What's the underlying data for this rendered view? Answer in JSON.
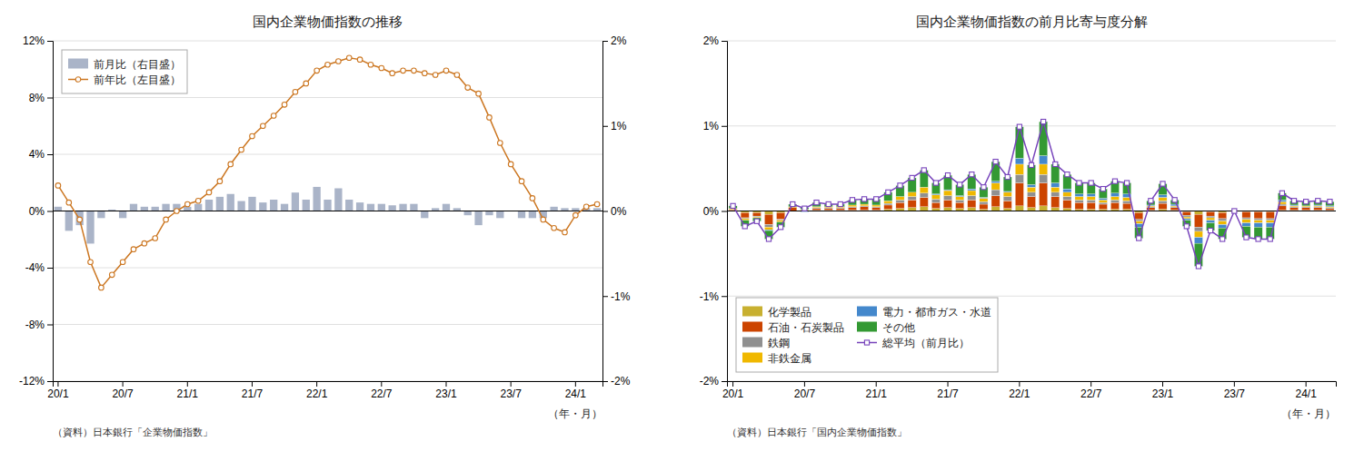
{
  "chart_data": [
    {
      "type": "bar",
      "title": "国内企業物価指数の推移",
      "xlabel": "（年・月）",
      "annotations": [
        "（資料）日本銀行「企業物価指数」"
      ],
      "categories": [
        "20/1",
        null,
        null,
        null,
        null,
        null,
        "20/7",
        null,
        null,
        null,
        null,
        null,
        "21/1",
        null,
        null,
        null,
        null,
        null,
        "21/7",
        null,
        null,
        null,
        null,
        null,
        "22/1",
        null,
        null,
        null,
        null,
        null,
        "22/7",
        null,
        null,
        null,
        null,
        null,
        "23/1",
        null,
        null,
        null,
        null,
        null,
        "23/7",
        null,
        null,
        null,
        null,
        null,
        "24/1",
        null,
        null
      ],
      "series": [
        {
          "name": "前月比（右目盛）",
          "type": "bar",
          "color": "#aab4c8",
          "values": [
            0.3,
            -1.4,
            -1.0,
            -2.3,
            -0.5,
            0.1,
            -0.5,
            0.5,
            0.3,
            0.3,
            0.5,
            0.5,
            0.3,
            0.5,
            0.8,
            1.0,
            1.2,
            0.7,
            1.0,
            0.6,
            0.8,
            0.5,
            1.3,
            0.8,
            1.7,
            0.8,
            1.6,
            0.8,
            0.6,
            0.5,
            0.5,
            0.4,
            0.5,
            0.5,
            -0.5,
            0.2,
            0.5,
            0.2,
            -0.3,
            -1.0,
            -0.3,
            -0.5,
            0.0,
            -0.5,
            -0.5,
            -0.5,
            0.3,
            0.2,
            0.2,
            0.2,
            0.2
          ]
        },
        {
          "name": "前年比（左目盛）",
          "type": "line",
          "axis": "y2",
          "color": "#cc7722",
          "marker": "circle",
          "values": [
            0.3,
            0.1,
            -0.1,
            -0.6,
            -0.9,
            -0.75,
            -0.6,
            -0.45,
            -0.38,
            -0.32,
            -0.1,
            0.0,
            0.08,
            0.12,
            0.22,
            0.35,
            0.55,
            0.72,
            0.88,
            1.0,
            1.12,
            1.25,
            1.4,
            1.5,
            1.65,
            1.72,
            1.76,
            1.8,
            1.78,
            1.72,
            1.68,
            1.62,
            1.65,
            1.65,
            1.62,
            1.6,
            1.65,
            1.6,
            1.45,
            1.38,
            1.1,
            0.8,
            0.55,
            0.35,
            0.15,
            -0.1,
            -0.2,
            -0.25,
            -0.05,
            0.05,
            0.08
          ]
        }
      ],
      "ylim": [
        -12,
        12
      ],
      "yticks": [
        {
          "value": -12,
          "label": "-12%"
        },
        {
          "value": -8,
          "label": "-8%"
        },
        {
          "value": -4,
          "label": "-4%"
        },
        {
          "value": 0,
          "label": "0%"
        },
        {
          "value": 4,
          "label": "4%"
        },
        {
          "value": 8,
          "label": "8%"
        },
        {
          "value": 12,
          "label": "12%"
        }
      ],
      "y2lim": [
        -2,
        2
      ],
      "y2ticks": [
        {
          "value": -2,
          "label": "-2%"
        },
        {
          "value": -1,
          "label": "-1%"
        },
        {
          "value": 0,
          "label": "0%"
        },
        {
          "value": 1,
          "label": "1%"
        },
        {
          "value": 2,
          "label": "2%"
        }
      ],
      "grid": true,
      "legend": "upper left"
    },
    {
      "type": "bar",
      "title": "国内企業物価指数の前月比寄与度分解",
      "xlabel": "（年・月）",
      "annotations": [
        "（資料）日本銀行「国内企業物価指数」"
      ],
      "categories": [
        "20/1",
        null,
        null,
        null,
        null,
        null,
        "20/7",
        null,
        null,
        null,
        null,
        null,
        "21/1",
        null,
        null,
        null,
        null,
        null,
        "21/7",
        null,
        null,
        null,
        null,
        null,
        "22/1",
        null,
        null,
        null,
        null,
        null,
        "22/7",
        null,
        null,
        null,
        null,
        null,
        "23/1",
        null,
        null,
        null,
        null,
        null,
        "23/7",
        null,
        null,
        null,
        null,
        null,
        "24/1",
        null,
        null
      ],
      "stacked": true,
      "series": [
        {
          "name": "化学製品",
          "type": "bar",
          "color": "#c8b030",
          "values": [
            0.01,
            -0.02,
            -0.02,
            -0.04,
            -0.02,
            0.0,
            0.0,
            0.01,
            0.01,
            0.01,
            0.01,
            0.01,
            0.01,
            0.02,
            0.03,
            0.04,
            0.05,
            0.03,
            0.04,
            0.03,
            0.04,
            0.02,
            0.05,
            0.03,
            0.06,
            0.04,
            0.06,
            0.04,
            0.03,
            0.02,
            0.02,
            0.02,
            0.02,
            0.02,
            -0.02,
            0.01,
            0.02,
            0.01,
            -0.01,
            -0.04,
            -0.01,
            -0.02,
            0.0,
            -0.01,
            -0.01,
            -0.01,
            0.01,
            0.01,
            0.01,
            0.01,
            0.01
          ]
        },
        {
          "name": "石油・石炭製品",
          "type": "bar",
          "color": "#cc4400",
          "values": [
            0.01,
            -0.06,
            -0.04,
            -0.12,
            -0.08,
            0.04,
            0.0,
            0.02,
            0.02,
            0.02,
            0.03,
            0.04,
            0.03,
            0.05,
            0.07,
            0.09,
            0.11,
            0.07,
            0.09,
            0.07,
            0.09,
            0.06,
            0.13,
            0.09,
            0.27,
            0.13,
            0.27,
            0.13,
            0.1,
            0.08,
            0.08,
            0.06,
            0.08,
            0.07,
            -0.08,
            0.03,
            0.07,
            0.03,
            -0.04,
            -0.15,
            -0.05,
            -0.07,
            0.0,
            -0.07,
            -0.08,
            -0.08,
            0.05,
            0.03,
            0.03,
            0.03,
            0.02
          ]
        },
        {
          "name": "鉄鋼",
          "type": "bar",
          "color": "#909090",
          "values": [
            0.0,
            -0.01,
            -0.01,
            -0.03,
            -0.01,
            0.0,
            0.01,
            0.01,
            0.01,
            0.01,
            0.01,
            0.01,
            0.01,
            0.02,
            0.03,
            0.04,
            0.05,
            0.04,
            0.05,
            0.03,
            0.05,
            0.03,
            0.07,
            0.05,
            0.1,
            0.05,
            0.1,
            0.05,
            0.04,
            0.03,
            0.03,
            0.02,
            0.03,
            0.03,
            -0.02,
            0.01,
            0.03,
            0.01,
            -0.02,
            -0.05,
            -0.02,
            -0.03,
            0.0,
            -0.02,
            -0.02,
            -0.02,
            0.02,
            0.01,
            0.01,
            0.01,
            0.01
          ]
        },
        {
          "name": "非鉄金属",
          "type": "bar",
          "color": "#f0b800",
          "values": [
            0.01,
            -0.02,
            -0.01,
            -0.03,
            -0.02,
            0.01,
            0.01,
            0.01,
            0.01,
            0.01,
            0.02,
            0.02,
            0.02,
            0.03,
            0.04,
            0.05,
            0.07,
            0.05,
            0.06,
            0.04,
            0.06,
            0.04,
            0.08,
            0.05,
            0.12,
            0.06,
            0.12,
            0.06,
            0.05,
            0.04,
            0.04,
            0.03,
            0.04,
            0.04,
            -0.03,
            0.01,
            0.04,
            0.01,
            -0.02,
            -0.07,
            -0.03,
            -0.04,
            0.0,
            -0.04,
            -0.03,
            -0.03,
            0.03,
            0.01,
            0.01,
            0.01,
            0.01
          ]
        },
        {
          "name": "電力・都市ガス・水道",
          "type": "bar",
          "color": "#4488cc",
          "values": [
            0.0,
            0.0,
            0.0,
            -0.01,
            0.0,
            0.0,
            -0.01,
            0.0,
            0.0,
            0.0,
            0.0,
            0.0,
            0.0,
            0.0,
            0.0,
            0.0,
            0.0,
            0.01,
            0.01,
            0.01,
            0.02,
            0.01,
            0.02,
            0.01,
            0.07,
            0.03,
            0.1,
            0.05,
            0.04,
            0.03,
            0.03,
            0.02,
            0.04,
            0.04,
            -0.04,
            0.01,
            0.03,
            0.02,
            -0.02,
            -0.07,
            -0.03,
            -0.04,
            0.0,
            -0.04,
            -0.05,
            -0.05,
            0.02,
            0.01,
            0.0,
            0.01,
            0.01
          ]
        },
        {
          "name": "その他",
          "type": "bar",
          "color": "#339933",
          "values": [
            0.03,
            -0.07,
            -0.04,
            -0.1,
            -0.06,
            0.03,
            0.02,
            0.05,
            0.03,
            0.03,
            0.06,
            0.06,
            0.07,
            0.1,
            0.13,
            0.17,
            0.2,
            0.13,
            0.17,
            0.13,
            0.17,
            0.12,
            0.23,
            0.17,
            0.37,
            0.23,
            0.4,
            0.22,
            0.17,
            0.13,
            0.13,
            0.11,
            0.14,
            0.13,
            -0.13,
            0.05,
            0.13,
            0.05,
            -0.07,
            -0.27,
            -0.09,
            -0.13,
            0.0,
            -0.13,
            -0.14,
            -0.14,
            0.08,
            0.05,
            0.05,
            0.05,
            0.05
          ]
        },
        {
          "name": "総平均（前月比）",
          "type": "line",
          "color": "#7744bb",
          "marker": "square",
          "values": [
            0.06,
            -0.18,
            -0.12,
            -0.33,
            -0.19,
            0.08,
            0.03,
            0.1,
            0.08,
            0.08,
            0.13,
            0.14,
            0.14,
            0.22,
            0.3,
            0.39,
            0.48,
            0.33,
            0.42,
            0.31,
            0.43,
            0.28,
            0.58,
            0.4,
            0.99,
            0.54,
            1.05,
            0.55,
            0.43,
            0.33,
            0.33,
            0.26,
            0.35,
            0.33,
            -0.32,
            0.12,
            0.32,
            0.13,
            -0.18,
            -0.65,
            -0.23,
            -0.33,
            0.0,
            -0.31,
            -0.33,
            -0.33,
            0.21,
            0.12,
            0.11,
            0.12,
            0.11
          ]
        }
      ],
      "ylim": [
        -2,
        2
      ],
      "yticks": [
        {
          "value": -2,
          "label": "-2%"
        },
        {
          "value": -1,
          "label": "-1%"
        },
        {
          "value": 0,
          "label": "0%"
        },
        {
          "value": 1,
          "label": "1%"
        },
        {
          "value": 2,
          "label": "2%"
        }
      ],
      "grid": true,
      "legend": "lower left"
    }
  ]
}
